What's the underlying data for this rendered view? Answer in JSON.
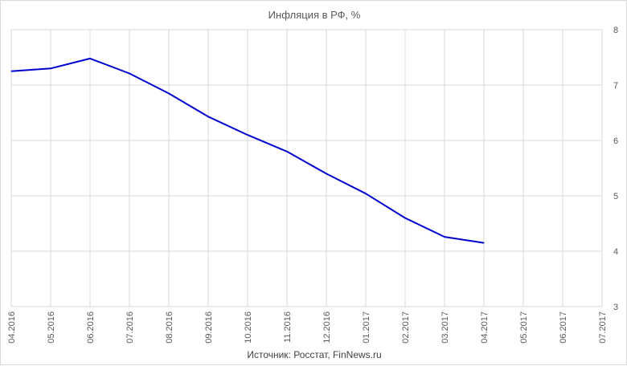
{
  "chart_data": {
    "type": "line",
    "title": "Инфляция в РФ, %",
    "source": "Источник: Росстат, FinNews.ru",
    "xlabel": "",
    "ylabel": "",
    "categories": [
      "04.2016",
      "05.2016",
      "06.2016",
      "07.2016",
      "08.2016",
      "09.2016",
      "10.2016",
      "11.2016",
      "12.2016",
      "01.2017",
      "02.2017",
      "03.2017",
      "04.2017",
      "05.2017",
      "06.2017",
      "07.2017"
    ],
    "series": [
      {
        "values": [
          7.25,
          7.3,
          7.48,
          7.21,
          6.85,
          6.43,
          6.1,
          5.8,
          5.4,
          5.04,
          4.6,
          4.26,
          4.15,
          null,
          null,
          null
        ]
      }
    ],
    "ylim": [
      3,
      8
    ],
    "yticks": [
      "3",
      "4",
      "5",
      "6",
      "7",
      "8"
    ],
    "y_axis_side": "right",
    "grid": true,
    "legend": "none",
    "line_color": "#0000cc"
  }
}
